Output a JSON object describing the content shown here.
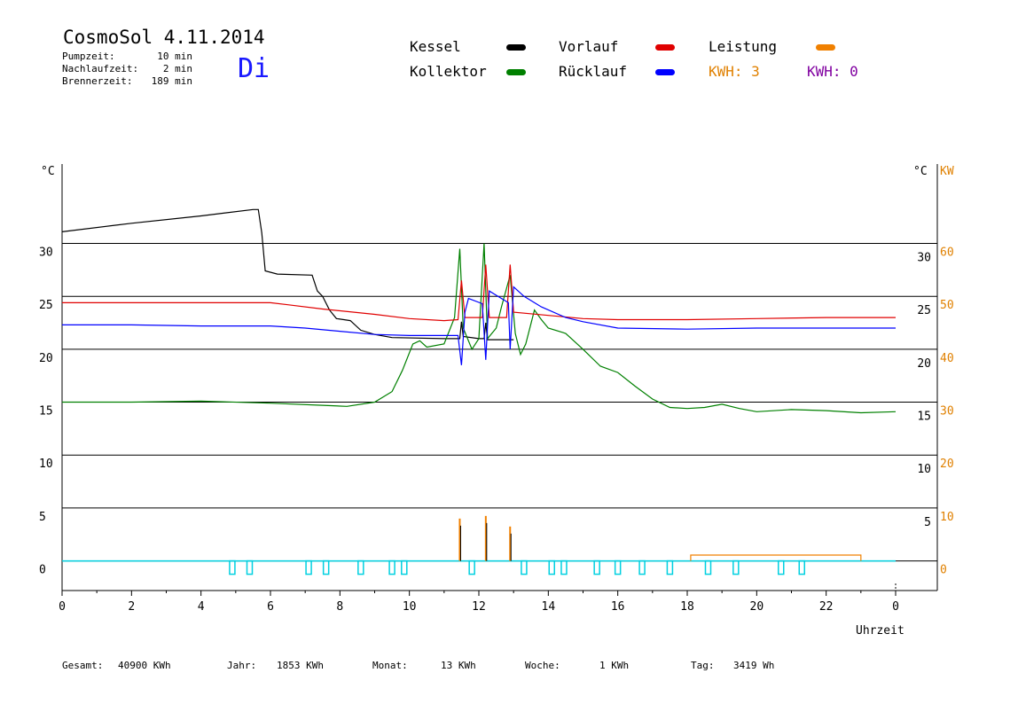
{
  "header": {
    "title": "CosmoSol 4.11.2014",
    "weekday": "Di",
    "params": [
      {
        "label": "Pumpzeit:",
        "value": "10 min"
      },
      {
        "label": "Nachlaufzeit:",
        "value": "2 min"
      },
      {
        "label": "Brennerzeit:",
        "value": "189 min"
      }
    ]
  },
  "legend": [
    {
      "name": "Kessel",
      "color": "#000000"
    },
    {
      "name": "Kollektor",
      "color": "#008000"
    },
    {
      "name": "Vorlauf",
      "color": "#e00000"
    },
    {
      "name": "Rücklauf",
      "color": "#0000ff"
    },
    {
      "name": "Leistung",
      "color": "#f08000"
    }
  ],
  "kwh": [
    {
      "text": "KWH: 3",
      "color": "#e08000"
    },
    {
      "text": "KWH: 0",
      "color": "#8000a0"
    }
  ],
  "footer": [
    {
      "label": "Gesamt:",
      "value": "40900 KWh"
    },
    {
      "label": "Jahr:",
      "value": "1853 KWh"
    },
    {
      "label": "Monat:",
      "value": "13 KWh"
    },
    {
      "label": "Woche:",
      "value": "1 KWh"
    },
    {
      "label": "Tag:",
      "value": "3419 Wh"
    }
  ],
  "chart_data": {
    "type": "line",
    "xlabel": "Uhrzeit",
    "x_ticks": [
      "0",
      "2",
      "4",
      "6",
      "8",
      "10",
      "12",
      "14",
      "16",
      "18",
      "20",
      "22",
      "0"
    ],
    "xlim": [
      0,
      24
    ],
    "left_unit": "°C",
    "right_unit": "°C",
    "right2_unit": "KW",
    "ylim": [
      -2.8,
      37.5
    ],
    "y_ticks": [
      0,
      5,
      10,
      15,
      20,
      25,
      30
    ],
    "kw_ticks": [
      0,
      10,
      20,
      30,
      40,
      50,
      60
    ],
    "grid": true,
    "series": [
      {
        "name": "Kessel",
        "color": "#000000",
        "points": [
          [
            0,
            31.1
          ],
          [
            2,
            31.9
          ],
          [
            4,
            32.6
          ],
          [
            5.5,
            33.2
          ],
          [
            5.65,
            33.2
          ],
          [
            5.75,
            31
          ],
          [
            5.85,
            27.4
          ],
          [
            6.2,
            27.1
          ],
          [
            7.2,
            27
          ],
          [
            7.35,
            25.5
          ],
          [
            7.5,
            25
          ],
          [
            7.7,
            23.7
          ],
          [
            7.9,
            22.9
          ],
          [
            8.3,
            22.7
          ],
          [
            8.6,
            21.8
          ],
          [
            9,
            21.4
          ],
          [
            9.5,
            21.1
          ],
          [
            11,
            21
          ],
          [
            11.45,
            21
          ],
          [
            11.5,
            22.6
          ],
          [
            11.55,
            21.2
          ],
          [
            12,
            21
          ],
          [
            12.15,
            21
          ],
          [
            12.2,
            22.5
          ],
          [
            12.25,
            20.9
          ],
          [
            13,
            20.9
          ]
        ]
      },
      {
        "name": "Kollektor",
        "color": "#008000",
        "points": [
          [
            0,
            15
          ],
          [
            2,
            15
          ],
          [
            4,
            15.1
          ],
          [
            6,
            14.9
          ],
          [
            7.5,
            14.7
          ],
          [
            8.2,
            14.6
          ],
          [
            9,
            15
          ],
          [
            9.5,
            16
          ],
          [
            9.8,
            18
          ],
          [
            10.1,
            20.5
          ],
          [
            10.3,
            20.8
          ],
          [
            10.5,
            20.2
          ],
          [
            11,
            20.5
          ],
          [
            11.3,
            23
          ],
          [
            11.45,
            29.5
          ],
          [
            11.55,
            22
          ],
          [
            11.8,
            20
          ],
          [
            12,
            21
          ],
          [
            12.15,
            30
          ],
          [
            12.25,
            21
          ],
          [
            12.5,
            22
          ],
          [
            12.65,
            24
          ],
          [
            12.9,
            27
          ],
          [
            13.05,
            21.5
          ],
          [
            13.2,
            19.5
          ],
          [
            13.35,
            20.5
          ],
          [
            13.6,
            23.7
          ],
          [
            13.8,
            22.8
          ],
          [
            14,
            22
          ],
          [
            14.5,
            21.5
          ],
          [
            15,
            20
          ],
          [
            15.5,
            18.4
          ],
          [
            16,
            17.8
          ],
          [
            16.5,
            16.5
          ],
          [
            17,
            15.3
          ],
          [
            17.5,
            14.5
          ],
          [
            18,
            14.4
          ],
          [
            18.5,
            14.5
          ],
          [
            19,
            14.8
          ],
          [
            19.5,
            14.4
          ],
          [
            20,
            14.1
          ],
          [
            21,
            14.3
          ],
          [
            22,
            14.2
          ],
          [
            23,
            14
          ],
          [
            24,
            14.1
          ]
        ]
      },
      {
        "name": "Vorlauf",
        "color": "#e00000",
        "points": [
          [
            0,
            24.4
          ],
          [
            2,
            24.4
          ],
          [
            4,
            24.4
          ],
          [
            6,
            24.4
          ],
          [
            6.5,
            24.2
          ],
          [
            7.5,
            23.8
          ],
          [
            9,
            23.3
          ],
          [
            10,
            22.9
          ],
          [
            11,
            22.7
          ],
          [
            11.4,
            22.8
          ],
          [
            11.5,
            26.5
          ],
          [
            11.6,
            23
          ],
          [
            12.1,
            23
          ],
          [
            12.2,
            28
          ],
          [
            12.3,
            23
          ],
          [
            12.8,
            23
          ],
          [
            12.9,
            28
          ],
          [
            13,
            23.5
          ],
          [
            14,
            23.2
          ],
          [
            15,
            22.9
          ],
          [
            16,
            22.8
          ],
          [
            18,
            22.8
          ],
          [
            20,
            22.9
          ],
          [
            22,
            23
          ],
          [
            24,
            23
          ]
        ]
      },
      {
        "name": "Rücklauf",
        "color": "#0000ff",
        "points": [
          [
            0,
            22.3
          ],
          [
            2,
            22.3
          ],
          [
            4,
            22.2
          ],
          [
            6,
            22.2
          ],
          [
            7,
            22
          ],
          [
            8,
            21.7
          ],
          [
            9,
            21.4
          ],
          [
            10,
            21.3
          ],
          [
            11.4,
            21.3
          ],
          [
            11.5,
            18.5
          ],
          [
            11.6,
            23.5
          ],
          [
            11.7,
            24.8
          ],
          [
            12.1,
            24.3
          ],
          [
            12.2,
            19
          ],
          [
            12.3,
            25.5
          ],
          [
            12.5,
            25.1
          ],
          [
            12.85,
            24.4
          ],
          [
            12.9,
            20
          ],
          [
            13,
            25.9
          ],
          [
            13.3,
            25
          ],
          [
            13.8,
            24
          ],
          [
            14.5,
            23
          ],
          [
            15,
            22.6
          ],
          [
            16,
            22
          ],
          [
            18,
            21.9
          ],
          [
            20,
            22
          ],
          [
            22,
            22
          ],
          [
            24,
            22
          ]
        ]
      }
    ],
    "leistung_spikes_kw": [
      [
        11.45,
        8
      ],
      [
        12.2,
        8.5
      ],
      [
        12.9,
        6.5
      ]
    ],
    "leistung_baseline_kw": [
      [
        18.1,
        1.1
      ],
      [
        23.0,
        1.1
      ]
    ],
    "cyan_baseline": 0,
    "cyan_pulses_hours": [
      4.9,
      5.4,
      7.1,
      7.6,
      8.6,
      9.5,
      9.85,
      11.8,
      13.3,
      14.1,
      14.45,
      15.4,
      16,
      16.7,
      17.5,
      18.6,
      19.4,
      20.7,
      21.3
    ]
  }
}
